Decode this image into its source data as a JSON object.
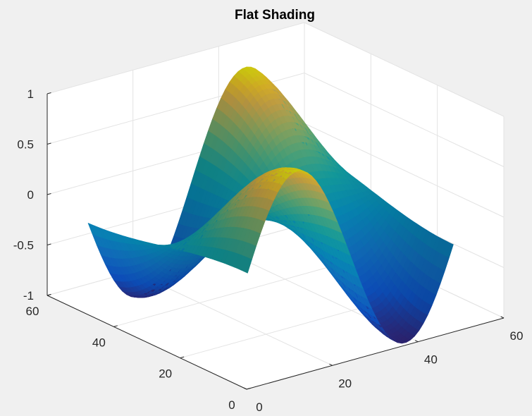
{
  "chart_data": {
    "type": "surface",
    "title": "Flat Shading",
    "xlabel": "",
    "ylabel": "",
    "zlabel": "",
    "shading": "flat",
    "colormap": "parula",
    "grid": true,
    "box": false,
    "xlim": [
      0,
      60
    ],
    "ylim": [
      0,
      60
    ],
    "zlim": [
      -1,
      1
    ],
    "x_ticks": [
      0,
      20,
      40,
      60
    ],
    "x_tick_labels": [
      "0",
      "20",
      "40",
      "60"
    ],
    "y_ticks": [
      0,
      20,
      40,
      60
    ],
    "y_tick_labels": [
      "0",
      "20",
      "40",
      "60"
    ],
    "z_ticks": [
      -1,
      -0.5,
      0,
      0.5,
      1
    ],
    "z_tick_labels": [
      "-1",
      "-0.5",
      "0",
      "0.5",
      "1"
    ],
    "surface": {
      "grid_size": [
        49,
        49
      ],
      "x_range": [
        1,
        49
      ],
      "y_range": [
        1,
        49
      ],
      "z_function": "sin(x/8) * cos((y-1)/16)",
      "z_range": [
        -1,
        1
      ]
    }
  },
  "colors": {
    "background": "#f0f0f0",
    "axes_background": "#ffffff",
    "grid": "#e3e3e3",
    "axis_line": "#262626",
    "parula_low": "#0d5dd2",
    "parula_mid": "#20b3b3",
    "parula_high": "#f9fb0e"
  }
}
